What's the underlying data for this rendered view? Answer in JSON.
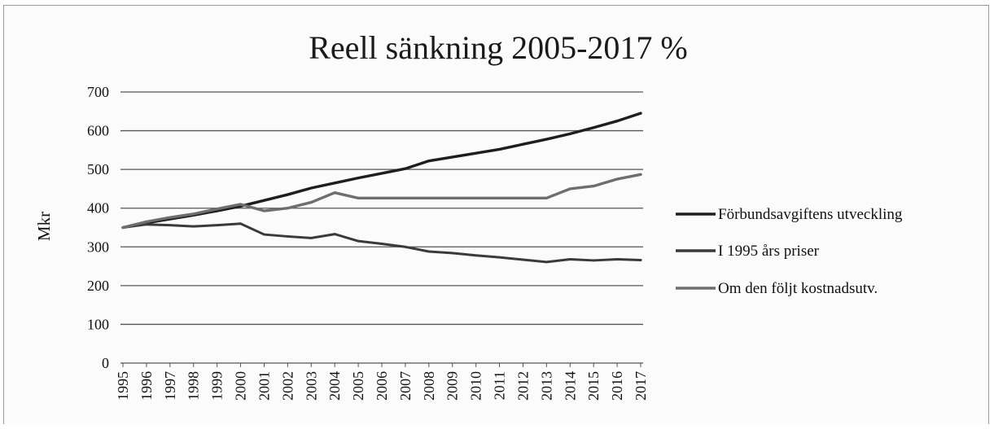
{
  "chart_data": {
    "type": "line",
    "title": "Reell sänkning 2005-2017 %",
    "ylabel": "Mkr",
    "xlabel": "",
    "ylim": [
      0,
      700
    ],
    "yticks": [
      "0",
      "100",
      "200",
      "300",
      "400",
      "500",
      "600",
      "700"
    ],
    "grid": true,
    "legend_position": "right",
    "categories": [
      "1995",
      "1996",
      "1997",
      "1998",
      "1999",
      "2000",
      "2001",
      "2002",
      "2003",
      "2004",
      "2005",
      "2006",
      "2007",
      "2008",
      "2009",
      "2010",
      "2011",
      "2012",
      "2013",
      "2014",
      "2015",
      "2016",
      "2017"
    ],
    "series": [
      {
        "name": "Förbundsavgiftens utveckling",
        "color": "#1e1e1e",
        "values": [
          350,
          362,
          372,
          382,
          393,
          405,
          420,
          435,
          452,
          465,
          478,
          490,
          502,
          522,
          532,
          542,
          552,
          565,
          578,
          592,
          608,
          625,
          645
        ]
      },
      {
        "name": "I 1995 års priser",
        "color": "#3a3a3a",
        "values": [
          350,
          358,
          356,
          353,
          356,
          360,
          332,
          327,
          323,
          333,
          315,
          308,
          300,
          288,
          284,
          278,
          273,
          267,
          261,
          268,
          265,
          268,
          266
        ]
      },
      {
        "name": "Om den följt kostnadsutv.",
        "color": "#6e6e6e",
        "values": [
          350,
          365,
          376,
          385,
          398,
          410,
          393,
          400,
          415,
          440,
          426,
          426,
          426,
          426,
          426,
          426,
          426,
          426,
          426,
          450,
          457,
          475,
          487
        ]
      }
    ]
  }
}
